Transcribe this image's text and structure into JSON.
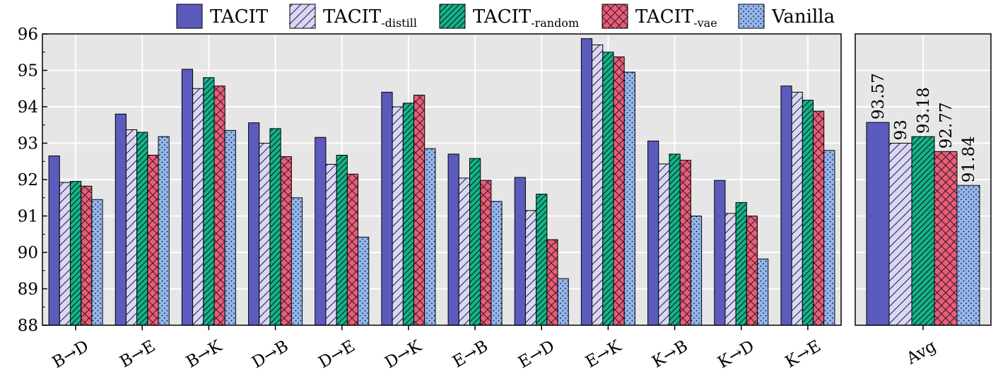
{
  "chart_data": {
    "type": "bar",
    "ylim": [
      88,
      96
    ],
    "yticks": [
      88,
      89,
      90,
      91,
      92,
      93,
      94,
      95,
      96
    ],
    "grid": true,
    "legend_placement": "top",
    "legend": [
      {
        "base": "TACIT",
        "sub": ""
      },
      {
        "base": "TACIT",
        "sub": "-distill"
      },
      {
        "base": "TACIT",
        "sub": "-random"
      },
      {
        "base": "TACIT",
        "sub": "-vae"
      },
      {
        "base": "Vanilla",
        "sub": ""
      }
    ],
    "series_colors": [
      "#5b5bbd",
      "#d9d6f7",
      "#12b48a",
      "#ee5a78",
      "#93b6ee"
    ],
    "series_patterns": [
      "solid",
      "diagonal",
      "diagonal-dense",
      "crosshatch",
      "dots"
    ],
    "categories": [
      "B→D",
      "B→E",
      "B→K",
      "D→B",
      "D→E",
      "D→K",
      "E→B",
      "E→D",
      "E→K",
      "K→B",
      "K→D",
      "K→E"
    ],
    "series": [
      {
        "values": [
          92.65,
          93.8,
          95.03,
          93.56,
          93.16,
          94.4,
          92.7,
          92.06,
          95.87,
          93.06,
          91.98,
          94.57
        ]
      },
      {
        "values": [
          91.92,
          93.37,
          94.5,
          93.0,
          92.42,
          94.0,
          92.04,
          91.15,
          95.7,
          92.43,
          91.07,
          94.4
        ]
      },
      {
        "values": [
          91.95,
          93.3,
          94.8,
          93.4,
          92.67,
          94.1,
          92.58,
          91.6,
          95.5,
          92.7,
          91.37,
          94.18
        ]
      },
      {
        "values": [
          91.82,
          92.67,
          94.57,
          92.63,
          92.15,
          94.32,
          91.98,
          90.35,
          95.37,
          92.53,
          91.0,
          93.88
        ]
      },
      {
        "values": [
          91.45,
          93.18,
          93.35,
          91.5,
          90.42,
          92.85,
          91.4,
          89.28,
          94.95,
          91.0,
          89.82,
          92.8
        ]
      }
    ],
    "avg": {
      "category": "Avg",
      "values": [
        93.57,
        93,
        93.18,
        92.77,
        91.84
      ],
      "labels": [
        "93.57",
        "93",
        "93.18",
        "92.77",
        "91.84"
      ]
    }
  }
}
